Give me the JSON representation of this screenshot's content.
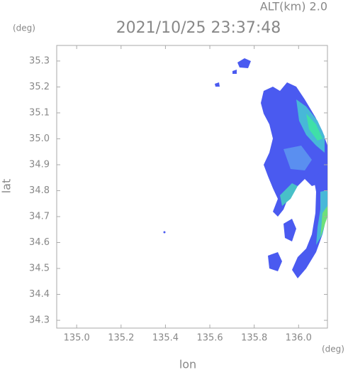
{
  "chart_data": {
    "type": "map",
    "title": "2021/10/25 23:37:48",
    "altitude_label": "ALT(km) 2.0",
    "y_unit": "(deg)",
    "x_unit": "(deg)",
    "xlabel": "lon",
    "ylabel": "lat",
    "xlim": [
      134.91,
      136.13
    ],
    "ylim": [
      34.27,
      35.36
    ],
    "xticks": [
      {
        "value": 135.0,
        "label": "135.0"
      },
      135.2,
      135.4,
      135.6,
      135.8,
      {
        "value": 136.0,
        "label": "136.0"
      }
    ],
    "yticks": [
      34.3,
      34.4,
      34.5,
      34.6,
      34.7,
      34.8,
      34.9,
      {
        "value": 35.0,
        "label": "35.0"
      },
      35.1,
      35.2,
      35.3
    ]
  }
}
